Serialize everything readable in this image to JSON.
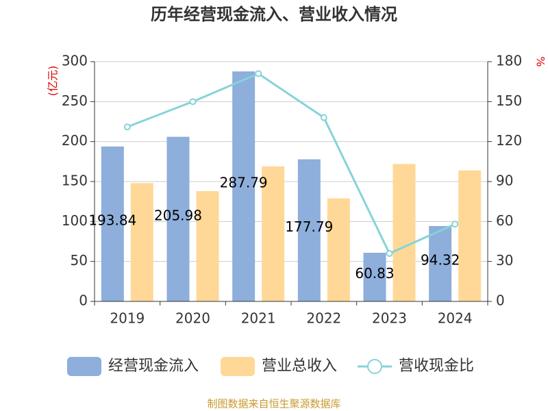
{
  "chart_data": {
    "type": "bar_line",
    "title": "历年经营现金流入、营业收入情况",
    "y_label": "(亿元)",
    "y2_label": "%",
    "categories": [
      "2019",
      "2020",
      "2021",
      "2022",
      "2023",
      "2024"
    ],
    "series": [
      {
        "name": "经营现金流入",
        "type": "bar",
        "color": "#8eaedb",
        "values": [
          193.84,
          205.98,
          287.79,
          177.79,
          60.83,
          94.32
        ],
        "show_labels": true
      },
      {
        "name": "营业总收入",
        "type": "bar",
        "color": "#ffd898",
        "values": [
          148,
          138,
          169,
          129,
          172,
          164
        ]
      },
      {
        "name": "营收现金比",
        "type": "line",
        "axis": "y2",
        "color": "#86d3d8",
        "values": [
          131,
          150,
          171,
          138,
          36,
          58
        ]
      }
    ],
    "ylim": [
      0,
      300
    ],
    "yticks": [
      0,
      50,
      100,
      150,
      200,
      250,
      300
    ],
    "y2lim": [
      0,
      180
    ],
    "y2ticks": [
      0,
      30,
      60,
      90,
      120,
      150,
      180
    ],
    "grid": true,
    "source": "制图数据来自恒生聚源数据库"
  }
}
